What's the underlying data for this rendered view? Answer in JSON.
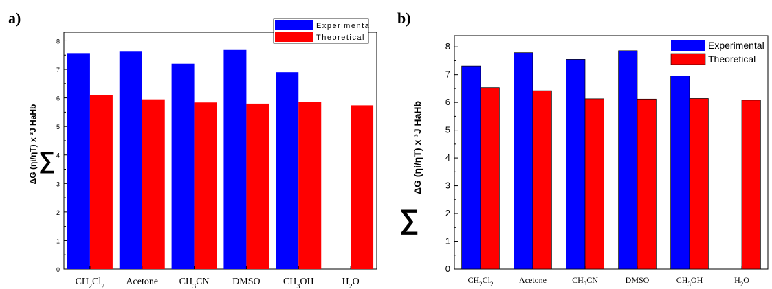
{
  "panels": [
    {
      "label": "a)",
      "legend": [
        "Experimental",
        "Theoretical"
      ],
      "ylabel": {
        "sum": "∑",
        "text": "ΔG (ηi/ηT) x ³J HaHb"
      }
    },
    {
      "label": "b)",
      "legend": [
        "Experimental",
        "Theoretical"
      ],
      "ylabel": {
        "sum": "∑",
        "text": "ΔG (ηi/ηT) x ³J HaHb"
      }
    }
  ],
  "colors": {
    "experimental": "#0000ff",
    "theoretical": "#ff0000"
  },
  "chart_data": [
    {
      "type": "bar",
      "categories": [
        "CH2Cl2",
        "Acetone",
        "CH3CN",
        "DMSO",
        "CH3OH",
        "H2O"
      ],
      "series": [
        {
          "name": "Experimental",
          "values": [
            7.57,
            7.62,
            7.2,
            7.68,
            6.9,
            null
          ]
        },
        {
          "name": "Theoretical",
          "values": [
            6.1,
            5.95,
            5.84,
            5.8,
            5.85,
            5.74
          ]
        }
      ],
      "ylim": [
        0,
        8.3
      ],
      "yticks": [
        0,
        1,
        2,
        3,
        4,
        5,
        6,
        7,
        8
      ],
      "legend_position": "top-right"
    },
    {
      "type": "bar",
      "categories": [
        "CH2Cl2",
        "Acetone",
        "CH3CN",
        "DMSO",
        "CH3OH",
        "H2O"
      ],
      "series": [
        {
          "name": "Experimental",
          "values": [
            7.31,
            7.79,
            7.55,
            7.86,
            6.95,
            null
          ]
        },
        {
          "name": "Theoretical",
          "values": [
            6.53,
            6.42,
            6.13,
            6.12,
            6.14,
            6.08
          ]
        }
      ],
      "ylim": [
        0,
        8.4
      ],
      "yticks": [
        0,
        1,
        2,
        3,
        4,
        5,
        6,
        7,
        8
      ],
      "legend_position": "top-right"
    }
  ]
}
